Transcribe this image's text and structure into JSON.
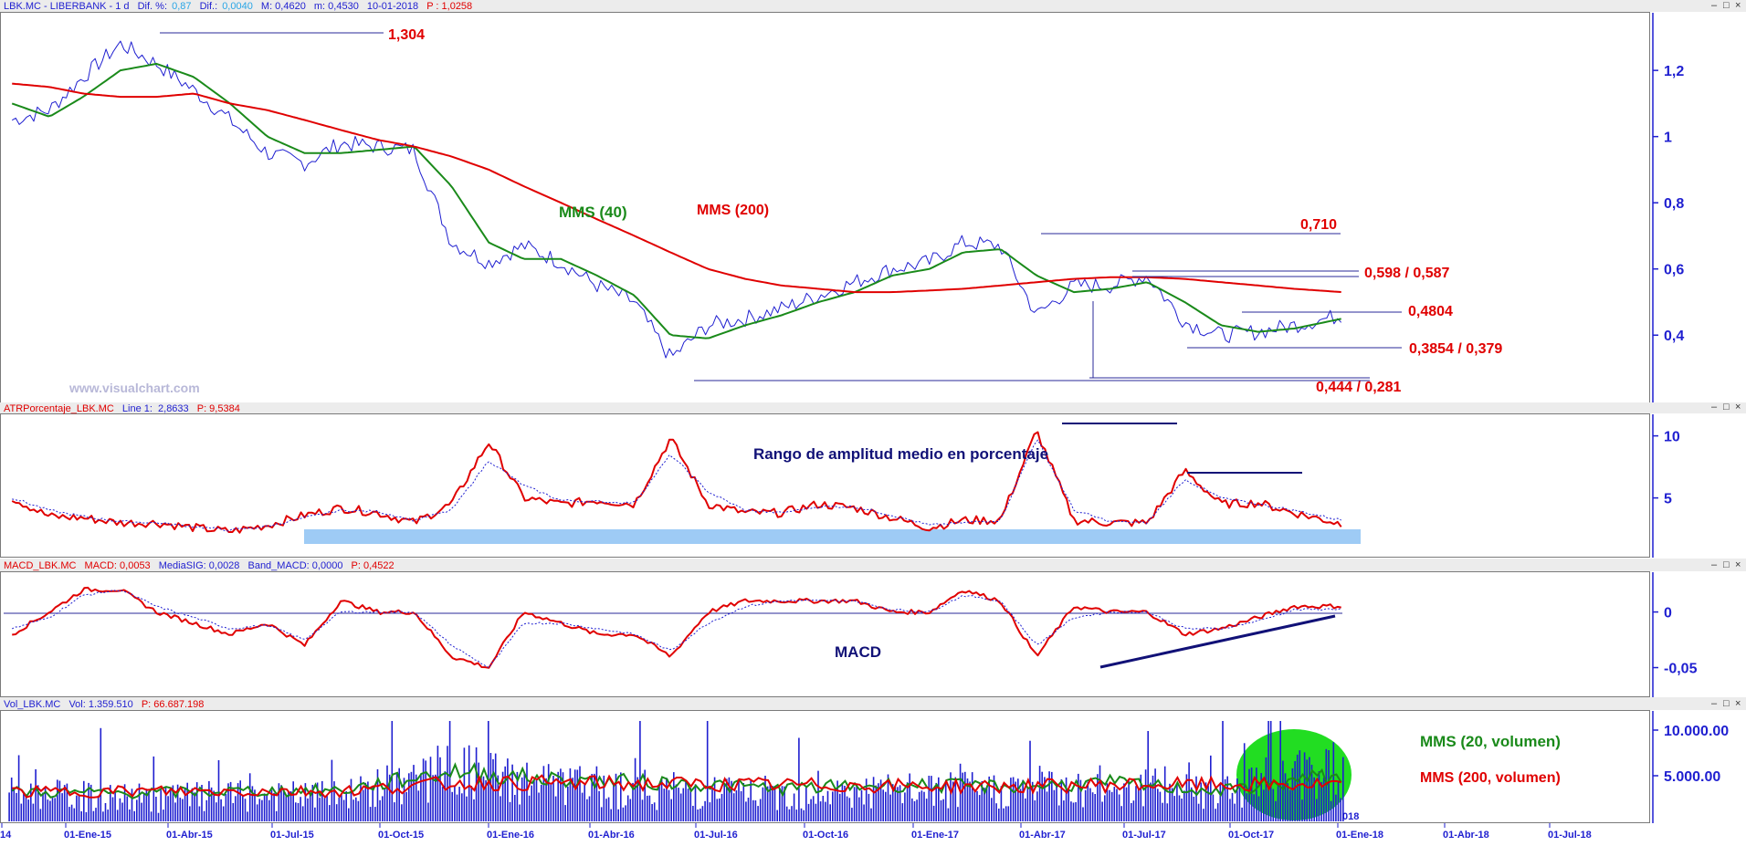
{
  "colors": {
    "price": "#1f1fd0",
    "mms40": "#1a8a1a",
    "mms200": "#e00000",
    "axis": "#1f1fd0",
    "pane_border": "#7a7a7a",
    "highlight_band": "#9ecbf5",
    "volume_highlight": "#22dd22"
  },
  "panes": {
    "price": {
      "title": {
        "symbol": "LBK.MC - LIBERBANK - 1 d",
        "dif_pct_label": "Dif. %:",
        "dif_pct": "0,87",
        "dif_label": "Dif.:",
        "dif": "0,0040",
        "max": "M: 0,4620",
        "min": "m: 0,4530",
        "date": "10-01-2018",
        "last": "P : 1,0258"
      },
      "watermark": "www.visualchart.com",
      "labels": {
        "mms40": "MMS (40)",
        "mms200": "MMS (200)",
        "l1304": "1,304",
        "l0710": "0,710",
        "l0598": "0,598 / 0,587",
        "l04804": "0,4804",
        "l03854": "0,3854 / 0,379",
        "l0444": "0,444 / 0,281"
      }
    },
    "atr": {
      "title": {
        "name": "ATRPorcentaje_LBK.MC",
        "line": "Line 1:",
        "line_val": "2,8633",
        "p": "P: 9,5384"
      },
      "label": "Rango de amplitud medio en porcentaje"
    },
    "macd": {
      "title": {
        "name": "MACD_LBK.MC",
        "macd": "MACD: 0,0053",
        "sig": "MediaSIG: 0,0028",
        "band": "Band_MACD: 0,0000",
        "p": "P: 0,4522"
      },
      "label": "MACD"
    },
    "volume": {
      "title": {
        "name": "Vol_LBK.MC",
        "vol": "Vol: 1.359.510",
        "p": "P: 66.687.198"
      },
      "label20": "MMS (20, volumen)",
      "label200": "MMS (200, volumen)",
      "year_fragment": "018"
    }
  },
  "chart_data": [
    {
      "type": "line",
      "pane": "price",
      "y_ticks": [
        "1,2",
        "1",
        "0,8",
        "0,6",
        "0,4"
      ],
      "ylim": [
        0.26,
        1.33
      ],
      "x": [
        "2015-01-01",
        "2015-02-01",
        "2015-03-01",
        "2015-04-01",
        "2015-05-01",
        "2015-06-01",
        "2015-07-01",
        "2015-08-01",
        "2015-09-01",
        "2015-10-01",
        "2015-11-01",
        "2015-12-01",
        "2016-01-01",
        "2016-02-01",
        "2016-03-01",
        "2016-04-01",
        "2016-05-01",
        "2016-06-01",
        "2016-07-01",
        "2016-08-01",
        "2016-09-01",
        "2016-10-01",
        "2016-11-01",
        "2016-12-01",
        "2017-01-01",
        "2017-02-01",
        "2017-03-01",
        "2017-04-01",
        "2017-05-01",
        "2017-06-01",
        "2017-07-01",
        "2017-08-01",
        "2017-09-01",
        "2017-10-01",
        "2017-11-01",
        "2017-12-01",
        "2018-01-10"
      ],
      "series": [
        {
          "name": "LBK.MC",
          "values": [
            1.05,
            1.08,
            1.18,
            1.28,
            1.22,
            1.14,
            1.05,
            0.95,
            0.92,
            0.98,
            0.97,
            0.96,
            0.68,
            0.62,
            0.67,
            0.62,
            0.55,
            0.5,
            0.33,
            0.43,
            0.45,
            0.48,
            0.52,
            0.56,
            0.6,
            0.62,
            0.68,
            0.67,
            0.46,
            0.55,
            0.55,
            0.58,
            0.44,
            0.4,
            0.41,
            0.43,
            0.46
          ]
        },
        {
          "name": "MMS (40)",
          "values": [
            1.1,
            1.06,
            1.12,
            1.2,
            1.22,
            1.18,
            1.1,
            1.0,
            0.95,
            0.95,
            0.96,
            0.97,
            0.85,
            0.68,
            0.63,
            0.63,
            0.58,
            0.52,
            0.4,
            0.39,
            0.43,
            0.46,
            0.5,
            0.53,
            0.58,
            0.6,
            0.65,
            0.66,
            0.58,
            0.53,
            0.54,
            0.56,
            0.5,
            0.43,
            0.41,
            0.42,
            0.45
          ]
        },
        {
          "name": "MMS (200)",
          "values": [
            1.16,
            1.15,
            1.13,
            1.12,
            1.12,
            1.13,
            1.1,
            1.08,
            1.05,
            1.02,
            0.99,
            0.97,
            0.94,
            0.9,
            0.85,
            0.8,
            0.75,
            0.7,
            0.65,
            0.6,
            0.57,
            0.55,
            0.54,
            0.53,
            0.53,
            0.535,
            0.54,
            0.55,
            0.56,
            0.57,
            0.575,
            0.575,
            0.57,
            0.56,
            0.55,
            0.54,
            0.53
          ]
        }
      ],
      "annotations": [
        "1,304",
        "0,710",
        "0,598 / 0,587",
        "0,4804",
        "0,3854 / 0,379",
        "0,444 / 0,281",
        "MMS (40)",
        "MMS (200)"
      ]
    },
    {
      "type": "line",
      "pane": "atr",
      "y_ticks": [
        "10",
        "5"
      ],
      "ylim": [
        1.0,
        11.0
      ],
      "x": [
        "2015-01-01",
        "2015-02-01",
        "2015-03-01",
        "2015-04-01",
        "2015-05-01",
        "2015-06-01",
        "2015-07-01",
        "2015-08-01",
        "2015-09-01",
        "2015-10-01",
        "2015-11-01",
        "2015-12-01",
        "2016-01-01",
        "2016-02-01",
        "2016-03-01",
        "2016-04-01",
        "2016-05-01",
        "2016-06-01",
        "2016-07-01",
        "2016-08-01",
        "2016-09-01",
        "2016-10-01",
        "2016-11-01",
        "2016-12-01",
        "2017-01-01",
        "2017-02-01",
        "2017-03-01",
        "2017-04-01",
        "2017-05-01",
        "2017-06-01",
        "2017-07-01",
        "2017-08-01",
        "2017-09-01",
        "2017-10-01",
        "2017-11-01",
        "2017-12-01",
        "2018-01-10"
      ],
      "series": [
        {
          "name": "ATRPorcentaje_LBK.MC",
          "values": [
            5.0,
            3.5,
            3.4,
            3.0,
            3.0,
            2.6,
            2.3,
            2.8,
            3.6,
            4.2,
            3.8,
            3.0,
            4.5,
            9.5,
            5.0,
            4.5,
            4.8,
            4.5,
            9.8,
            4.5,
            3.8,
            3.8,
            4.5,
            4.2,
            3.4,
            2.6,
            3.2,
            3.2,
            10.4,
            3.2,
            3.0,
            3.0,
            7.2,
            4.5,
            4.6,
            3.8,
            2.9
          ]
        },
        {
          "name": "Line 1",
          "values": [
            5.0,
            4.0,
            3.5,
            3.1,
            3.0,
            2.7,
            2.4,
            2.7,
            3.4,
            4.0,
            3.9,
            3.2,
            4.0,
            8.0,
            6.0,
            4.8,
            4.7,
            4.6,
            8.5,
            5.5,
            4.0,
            3.8,
            4.3,
            4.3,
            3.6,
            2.8,
            3.0,
            3.2,
            9.8,
            4.0,
            3.1,
            3.0,
            6.5,
            5.0,
            4.5,
            4.0,
            3.2
          ]
        }
      ],
      "annotations": [
        "Rango de amplitud medio en porcentaje"
      ]
    },
    {
      "type": "line",
      "pane": "macd",
      "y_ticks": [
        "0",
        "-0,05"
      ],
      "ylim": [
        -0.075,
        0.03
      ],
      "x": [
        "2015-01-01",
        "2015-02-01",
        "2015-03-01",
        "2015-04-01",
        "2015-05-01",
        "2015-06-01",
        "2015-07-01",
        "2015-08-01",
        "2015-09-01",
        "2015-10-01",
        "2015-11-01",
        "2015-12-01",
        "2016-01-01",
        "2016-02-01",
        "2016-03-01",
        "2016-04-01",
        "2016-05-01",
        "2016-06-01",
        "2016-07-01",
        "2016-08-01",
        "2016-09-01",
        "2016-10-01",
        "2016-11-01",
        "2016-12-01",
        "2017-01-01",
        "2017-02-01",
        "2017-03-01",
        "2017-04-01",
        "2017-05-01",
        "2017-06-01",
        "2017-07-01",
        "2017-08-01",
        "2017-09-01",
        "2017-10-01",
        "2017-11-01",
        "2017-12-01",
        "2018-01-10"
      ],
      "series": [
        {
          "name": "MACD",
          "values": [
            -0.02,
            0.0,
            0.02,
            0.02,
            0.0,
            -0.01,
            -0.02,
            -0.01,
            -0.03,
            0.01,
            0.0,
            0.0,
            -0.04,
            -0.05,
            0.0,
            -0.01,
            -0.02,
            -0.02,
            -0.04,
            0.0,
            0.01,
            0.01,
            0.01,
            0.01,
            0.0,
            0.0,
            0.02,
            0.01,
            -0.04,
            0.005,
            0.0,
            0.0,
            -0.02,
            -0.015,
            -0.005,
            0.005,
            0.0053
          ]
        },
        {
          "name": "MediaSIG",
          "values": [
            -0.015,
            -0.005,
            0.015,
            0.02,
            0.005,
            -0.005,
            -0.015,
            -0.012,
            -0.025,
            0.0,
            0.0,
            0.0,
            -0.03,
            -0.05,
            -0.01,
            -0.01,
            -0.015,
            -0.02,
            -0.035,
            -0.01,
            0.005,
            0.01,
            0.01,
            0.01,
            0.002,
            0.0,
            0.015,
            0.01,
            -0.03,
            -0.005,
            0.0,
            0.0,
            -0.015,
            -0.015,
            -0.008,
            0.002,
            0.0028
          ]
        }
      ],
      "annotations": [
        "MACD"
      ]
    },
    {
      "type": "bar",
      "pane": "volume",
      "y_ticks": [
        "10.000.00",
        "5.000.00"
      ],
      "ylim": [
        0,
        11000000
      ],
      "categories": [
        "01-Ene-15",
        "01-Abr-15",
        "01-Jul-15",
        "01-Oct-15",
        "01-Ene-16",
        "01-Abr-16",
        "01-Jul-16",
        "01-Oct-16",
        "01-Ene-17",
        "01-Abr-17",
        "01-Jul-17",
        "01-Oct-17",
        "01-Ene-18"
      ],
      "series": [
        {
          "name": "Vol_LBK.MC",
          "values": [
            3500000,
            3000000,
            3200000,
            3200000,
            6500000,
            4500000,
            4000000,
            3500000,
            3800000,
            4000000,
            4500000,
            4200000,
            6800000
          ]
        },
        {
          "name": "MMS (20, volumen)",
          "values": [
            3200000,
            3100000,
            3300000,
            3400000,
            5500000,
            4500000,
            4200000,
            3600000,
            4000000,
            3800000,
            4200000,
            3300000,
            5000000
          ]
        },
        {
          "name": "MMS (200, volumen)",
          "values": [
            3200000,
            3300000,
            3300000,
            3300000,
            4200000,
            4200000,
            4100000,
            4000000,
            3900000,
            3800000,
            4000000,
            4000000,
            4000000
          ]
        }
      ],
      "annotations": [
        "MMS (20, volumen)",
        "MMS (200, volumen)"
      ]
    }
  ],
  "x_axis_labels": [
    "14",
    "01-Ene-15",
    "01-Abr-15",
    "01-Jul-15",
    "01-Oct-15",
    "01-Ene-16",
    "01-Abr-16",
    "01-Jul-16",
    "01-Oct-16",
    "01-Ene-17",
    "01-Abr-17",
    "01-Jul-17",
    "01-Oct-17",
    "01-Ene-18",
    "01-Abr-18",
    "01-Jul-18"
  ]
}
